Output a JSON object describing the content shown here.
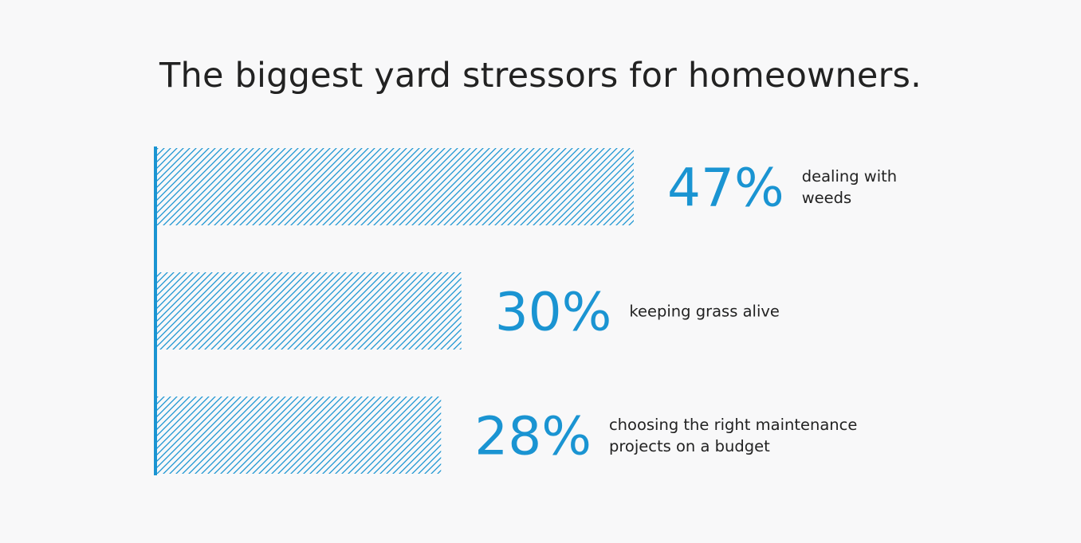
{
  "colors": {
    "accent": "#1a94d2",
    "text": "#222222",
    "background": "#f8f8f9"
  },
  "chart_data": {
    "type": "bar",
    "orientation": "horizontal",
    "title": "The biggest yard stressors for homeowners.",
    "unit": "%",
    "bar_fill": "diagonal-hatch",
    "categories": [
      [
        "dealing with",
        "weeds"
      ],
      [
        "keeping grass alive"
      ],
      [
        "choosing the right maintenance",
        "projects on a budget"
      ]
    ],
    "values": [
      47,
      30,
      28
    ],
    "value_labels": [
      "47%",
      "30%",
      "28%"
    ],
    "xlim": [
      0,
      100
    ],
    "grid": false,
    "legend": "none"
  }
}
